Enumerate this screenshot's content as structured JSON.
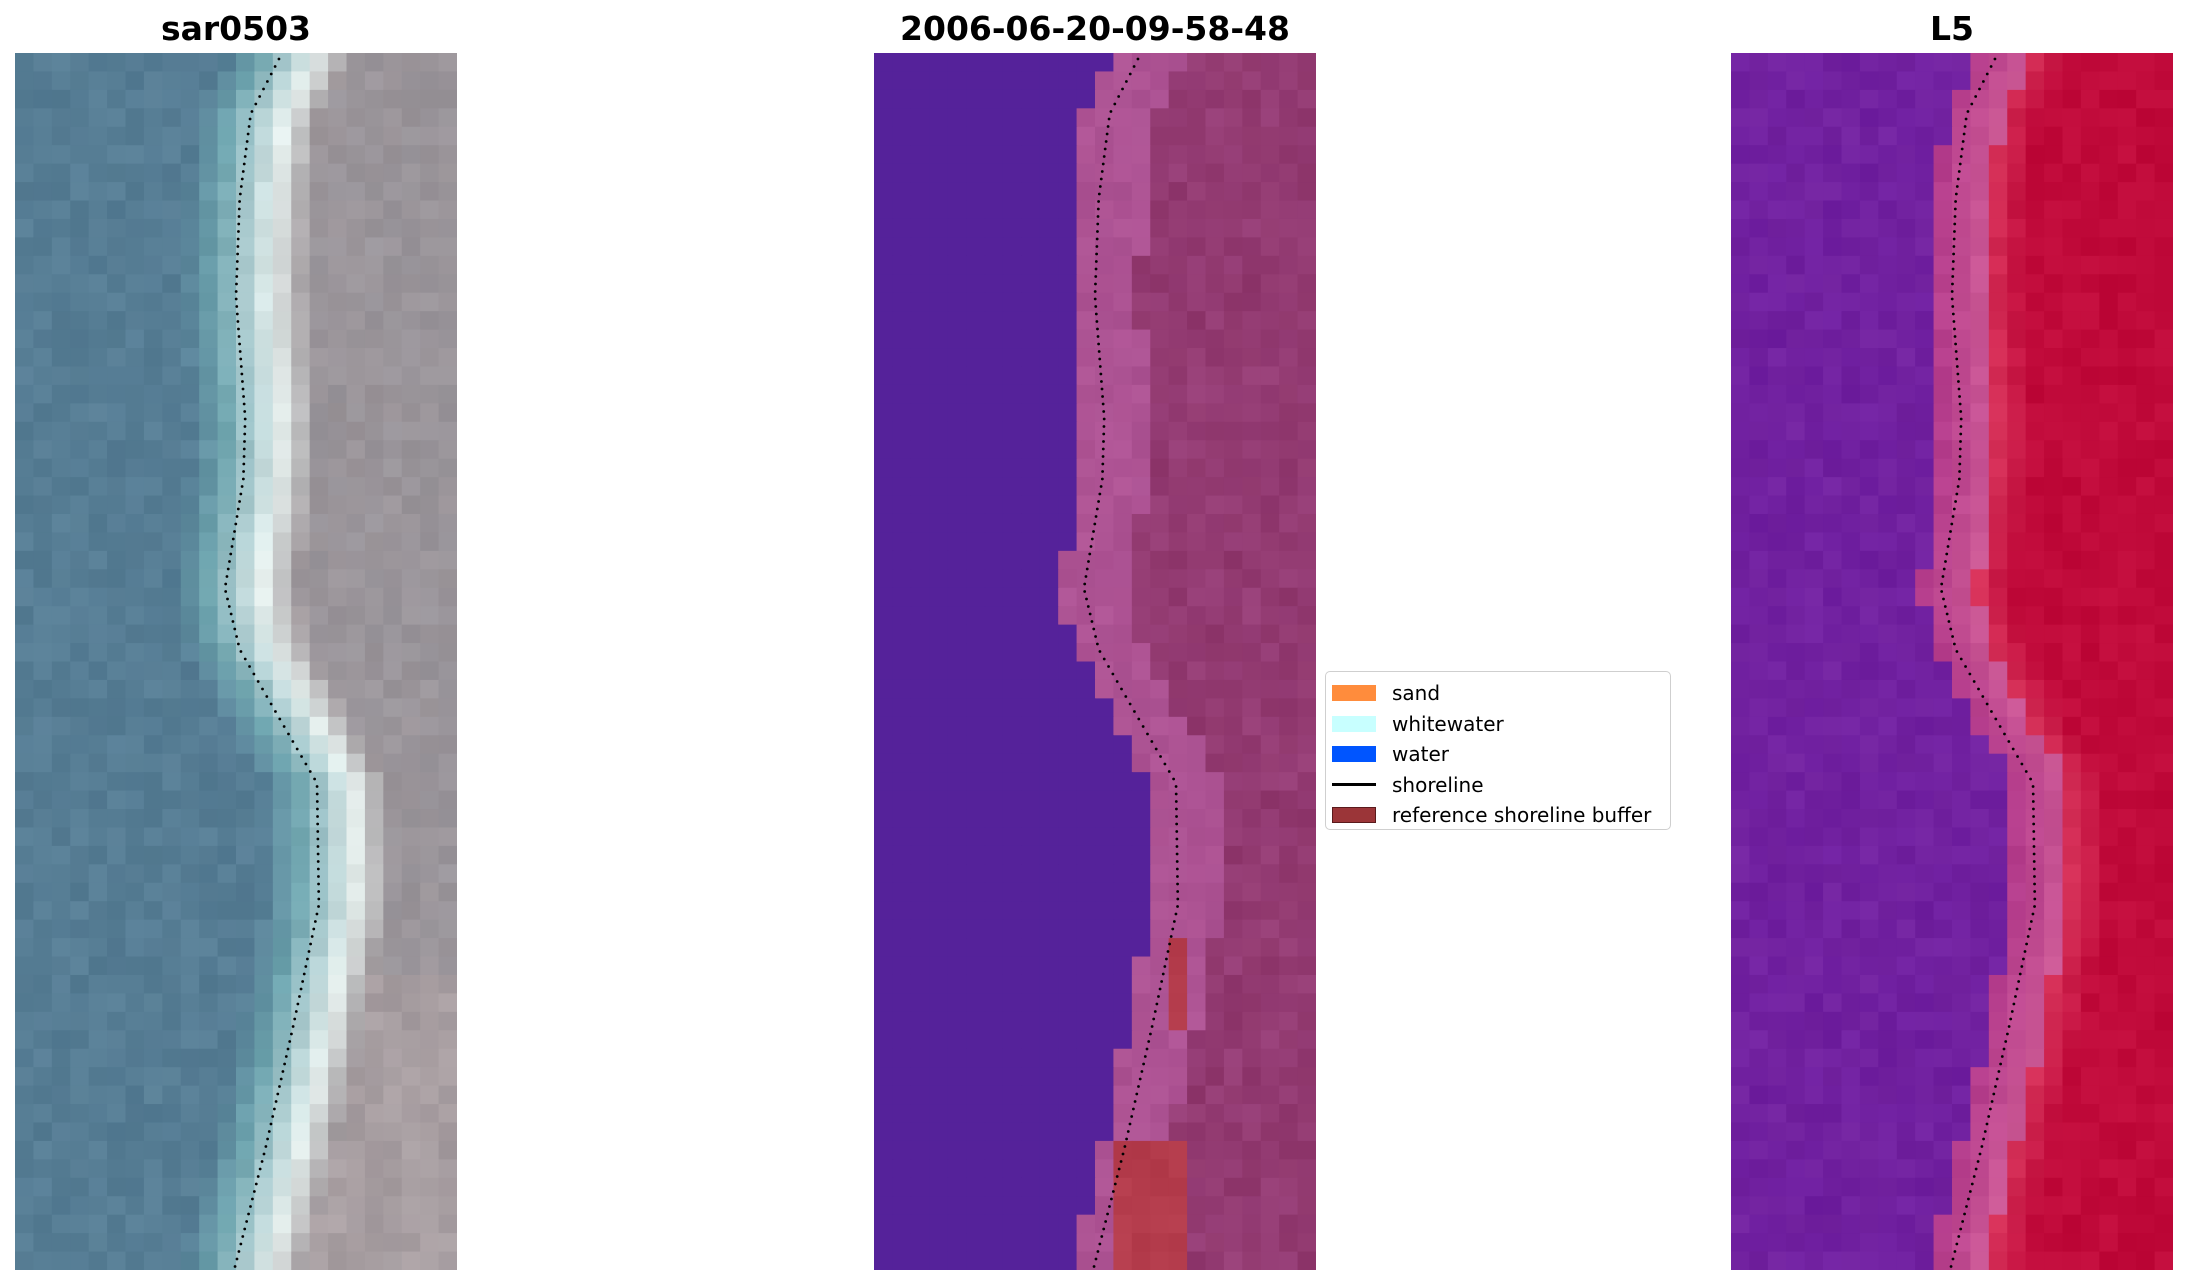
{
  "panels": [
    {
      "title": "sar0503"
    },
    {
      "title": "2006-06-20-09-58-48"
    },
    {
      "title": "L5"
    }
  ],
  "legend": {
    "items": [
      {
        "label": "sand",
        "color": "#ff8c3c",
        "kind": "patch"
      },
      {
        "label": "whitewater",
        "color": "#c8ffff",
        "kind": "patch"
      },
      {
        "label": "water",
        "color": "#0055ff",
        "kind": "patch"
      },
      {
        "label": "shoreline",
        "color": "#000000",
        "kind": "line"
      },
      {
        "label": "reference shoreline buffer",
        "color": "#9b3538",
        "kind": "patch",
        "edge": "#5a1a1c"
      }
    ]
  },
  "colors": {
    "rgb_water": "#557c94",
    "rgb_whitewater": "#e6f0ee",
    "rgb_sand": "#9c9498",
    "class_water": "#55229a",
    "class_beach": "#a85090",
    "class_inland": "#8c3468",
    "class_buffer": "#b43c4c",
    "index_water": "#6e1ea0",
    "index_land": "#c00a3a",
    "shoreline_dots": "#000000"
  }
}
